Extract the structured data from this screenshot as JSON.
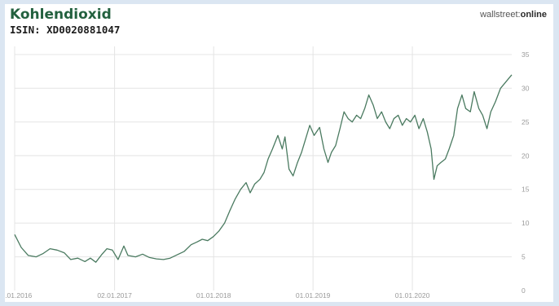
{
  "header": {
    "title": "Kohlendioxid",
    "subtitle": "ISIN: XD0020881047",
    "brand_part1": "wallstreet:",
    "brand_part2": "online"
  },
  "colors": {
    "background": "#dbe6f2",
    "title": "#23613f",
    "line": "#4a7a60",
    "grid": "#e4e4e4",
    "tick_text": "#9a9a9a"
  },
  "chart_data": {
    "type": "line",
    "title": "Kohlendioxid",
    "subtitle": "ISIN: XD0020881047",
    "xlabel": "",
    "ylabel": "",
    "x_range": [
      "2016-01-01",
      "2020-12-31"
    ],
    "ylim": [
      0,
      35
    ],
    "y_axis_side": "right",
    "grid": true,
    "legend": "none",
    "y_ticks": [
      0,
      5,
      10,
      15,
      20,
      25,
      30,
      35
    ],
    "x_ticks": [
      {
        "date": "2016-01-01",
        "label": "01.01.2016"
      },
      {
        "date": "2017-01-02",
        "label": "02.01.2017"
      },
      {
        "date": "2018-01-01",
        "label": "01.01.2018"
      },
      {
        "date": "2019-01-01",
        "label": "01.01.2019"
      },
      {
        "date": "2020-01-01",
        "label": "01.01.2020"
      }
    ],
    "series": [
      {
        "points": [
          [
            "2016-01-01",
            8.3
          ],
          [
            "2016-01-25",
            6.4
          ],
          [
            "2016-02-20",
            5.2
          ],
          [
            "2016-03-20",
            5.0
          ],
          [
            "2016-04-15",
            5.5
          ],
          [
            "2016-05-10",
            6.2
          ],
          [
            "2016-06-05",
            6.0
          ],
          [
            "2016-07-01",
            5.6
          ],
          [
            "2016-07-25",
            4.6
          ],
          [
            "2016-08-20",
            4.8
          ],
          [
            "2016-09-15",
            4.3
          ],
          [
            "2016-10-05",
            4.8
          ],
          [
            "2016-10-25",
            4.2
          ],
          [
            "2016-11-15",
            5.3
          ],
          [
            "2016-12-05",
            6.2
          ],
          [
            "2016-12-25",
            6.0
          ],
          [
            "2017-01-15",
            4.6
          ],
          [
            "2017-02-05",
            6.6
          ],
          [
            "2017-02-20",
            5.2
          ],
          [
            "2017-03-20",
            5.0
          ],
          [
            "2017-04-15",
            5.4
          ],
          [
            "2017-05-10",
            4.9
          ],
          [
            "2017-06-05",
            4.7
          ],
          [
            "2017-07-01",
            4.6
          ],
          [
            "2017-07-25",
            4.8
          ],
          [
            "2017-08-20",
            5.3
          ],
          [
            "2017-09-15",
            5.8
          ],
          [
            "2017-10-10",
            6.8
          ],
          [
            "2017-11-01",
            7.2
          ],
          [
            "2017-11-20",
            7.6
          ],
          [
            "2017-12-10",
            7.4
          ],
          [
            "2017-12-31",
            8.0
          ],
          [
            "2018-01-20",
            8.8
          ],
          [
            "2018-02-10",
            10.0
          ],
          [
            "2018-03-01",
            11.8
          ],
          [
            "2018-03-20",
            13.5
          ],
          [
            "2018-04-10",
            15.0
          ],
          [
            "2018-04-30",
            16.0
          ],
          [
            "2018-05-15",
            14.5
          ],
          [
            "2018-06-01",
            15.8
          ],
          [
            "2018-06-20",
            16.5
          ],
          [
            "2018-07-05",
            17.5
          ],
          [
            "2018-07-20",
            19.5
          ],
          [
            "2018-08-05",
            21.0
          ],
          [
            "2018-08-25",
            23.0
          ],
          [
            "2018-09-10",
            21.0
          ],
          [
            "2018-09-20",
            22.8
          ],
          [
            "2018-10-05",
            18.0
          ],
          [
            "2018-10-20",
            17.0
          ],
          [
            "2018-11-05",
            19.0
          ],
          [
            "2018-11-20",
            20.5
          ],
          [
            "2018-12-05",
            22.5
          ],
          [
            "2018-12-20",
            24.5
          ],
          [
            "2019-01-05",
            23.0
          ],
          [
            "2019-01-25",
            24.2
          ],
          [
            "2019-02-10",
            21.0
          ],
          [
            "2019-02-25",
            19.0
          ],
          [
            "2019-03-10",
            20.5
          ],
          [
            "2019-03-25",
            21.5
          ],
          [
            "2019-04-10",
            24.0
          ],
          [
            "2019-04-25",
            26.5
          ],
          [
            "2019-05-10",
            25.5
          ],
          [
            "2019-05-25",
            25.0
          ],
          [
            "2019-06-10",
            26.0
          ],
          [
            "2019-06-25",
            25.5
          ],
          [
            "2019-07-10",
            27.0
          ],
          [
            "2019-07-25",
            29.0
          ],
          [
            "2019-08-10",
            27.5
          ],
          [
            "2019-08-25",
            25.5
          ],
          [
            "2019-09-10",
            26.5
          ],
          [
            "2019-09-25",
            25.0
          ],
          [
            "2019-10-10",
            24.0
          ],
          [
            "2019-10-25",
            25.5
          ],
          [
            "2019-11-10",
            26.0
          ],
          [
            "2019-11-25",
            24.5
          ],
          [
            "2019-12-10",
            25.5
          ],
          [
            "2019-12-25",
            25.0
          ],
          [
            "2020-01-10",
            26.0
          ],
          [
            "2020-01-25",
            24.0
          ],
          [
            "2020-02-10",
            25.5
          ],
          [
            "2020-02-25",
            23.5
          ],
          [
            "2020-03-10",
            21.0
          ],
          [
            "2020-03-20",
            16.5
          ],
          [
            "2020-04-01",
            18.5
          ],
          [
            "2020-04-15",
            19.0
          ],
          [
            "2020-05-01",
            19.5
          ],
          [
            "2020-05-15",
            21.0
          ],
          [
            "2020-06-01",
            23.0
          ],
          [
            "2020-06-15",
            27.0
          ],
          [
            "2020-07-01",
            29.0
          ],
          [
            "2020-07-15",
            27.0
          ],
          [
            "2020-08-01",
            26.5
          ],
          [
            "2020-08-15",
            29.5
          ],
          [
            "2020-09-01",
            27.0
          ],
          [
            "2020-09-15",
            26.0
          ],
          [
            "2020-10-01",
            24.0
          ],
          [
            "2020-10-15",
            26.5
          ],
          [
            "2020-11-01",
            28.0
          ],
          [
            "2020-11-20",
            30.0
          ],
          [
            "2020-12-31",
            32.0
          ]
        ]
      }
    ]
  }
}
